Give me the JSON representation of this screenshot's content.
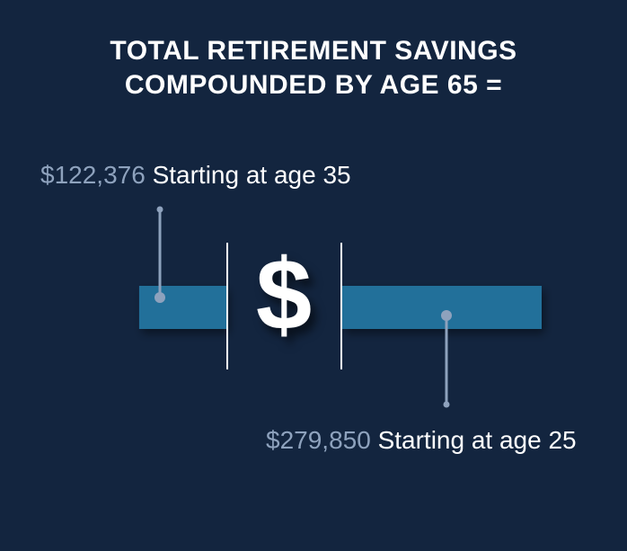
{
  "title": {
    "line1": "TOTAL RETIREMENT SAVINGS",
    "line2": "COMPOUNDED BY AGE 65 ="
  },
  "center_symbol": "$",
  "colors": {
    "background": "#13253f",
    "bar": "#246f9a",
    "connector": "#8ea2bd",
    "amount_text": "#8ea2bd",
    "label_text": "#ffffff"
  },
  "chart_data": {
    "type": "bar",
    "title": "TOTAL RETIREMENT SAVINGS COMPOUNDED BY AGE 65 =",
    "categories": [
      "Starting at age 35",
      "Starting at age 25"
    ],
    "values": [
      122376,
      279850
    ],
    "value_labels": [
      "$122,376",
      "$279,850"
    ],
    "xlabel": "",
    "ylabel": "",
    "grid": false
  }
}
